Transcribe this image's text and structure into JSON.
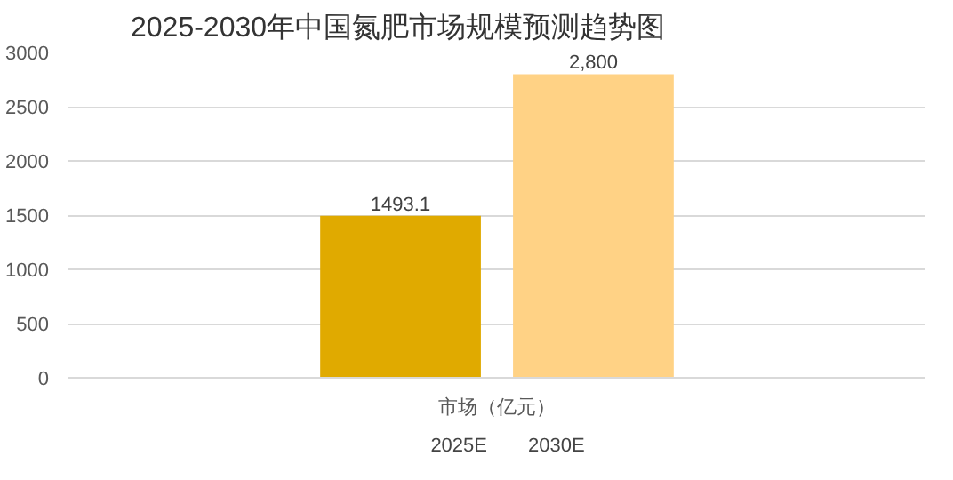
{
  "chart_data": {
    "type": "bar",
    "title": "2025-2030年中国氮肥市场规模预测趋势图",
    "categories": [
      "市场（亿元）"
    ],
    "series": [
      {
        "name": "2025E",
        "color": "#e0aa00",
        "values": [
          1493.1
        ],
        "value_labels": [
          "1493.1"
        ]
      },
      {
        "name": "2030E",
        "color": "#ffd285",
        "values": [
          2800
        ],
        "value_labels": [
          "2,800"
        ]
      }
    ],
    "ylim": [
      0,
      3000
    ],
    "yticks": [
      0,
      500,
      1000,
      1500,
      2000,
      2500,
      3000
    ],
    "grid": "y",
    "legend": "bottom"
  }
}
